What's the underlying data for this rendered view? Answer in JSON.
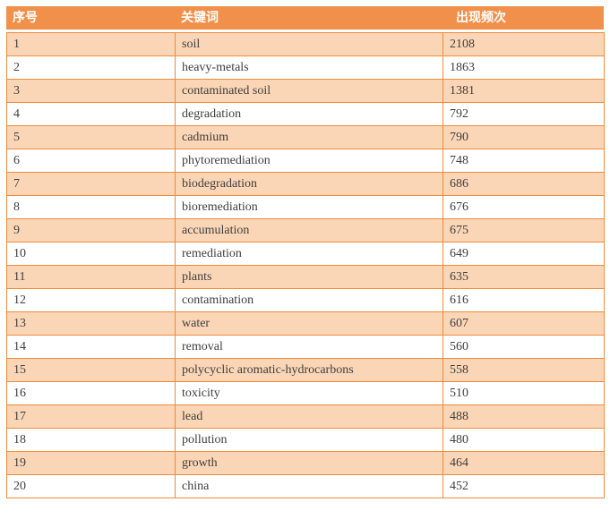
{
  "table": {
    "columns": [
      {
        "key": "index",
        "label": "序号"
      },
      {
        "key": "keyword",
        "label": "关键词"
      },
      {
        "key": "frequency",
        "label": "出现频次"
      }
    ],
    "rows": [
      [
        "1",
        "soil",
        "2108"
      ],
      [
        "2",
        "heavy-metals",
        "1863"
      ],
      [
        "3",
        "contaminated soil",
        "1381"
      ],
      [
        "4",
        "degradation",
        "792"
      ],
      [
        "5",
        "cadmium",
        "790"
      ],
      [
        "6",
        "phytoremediation",
        "748"
      ],
      [
        "7",
        "biodegradation",
        "686"
      ],
      [
        "8",
        "bioremediation",
        "676"
      ],
      [
        "9",
        "accumulation",
        "675"
      ],
      [
        "10",
        "remediation",
        "649"
      ],
      [
        "11",
        "plants",
        "635"
      ],
      [
        "12",
        "contamination",
        "616"
      ],
      [
        "13",
        "water",
        "607"
      ],
      [
        "14",
        "removal",
        "560"
      ],
      [
        "15",
        "polycyclic aromatic-hydrocarbons",
        "558"
      ],
      [
        "16",
        "toxicity",
        "510"
      ],
      [
        "17",
        "lead",
        "488"
      ],
      [
        "18",
        "pollution",
        "480"
      ],
      [
        "19",
        "growth",
        "464"
      ],
      [
        "20",
        "china",
        "452"
      ]
    ]
  },
  "colors": {
    "header_bg": "#F1904A",
    "header_text": "#FFFFFF",
    "band_bg": "#FBD6B6",
    "border": "#ED8B3D",
    "body_text": "#3F3F3F"
  }
}
